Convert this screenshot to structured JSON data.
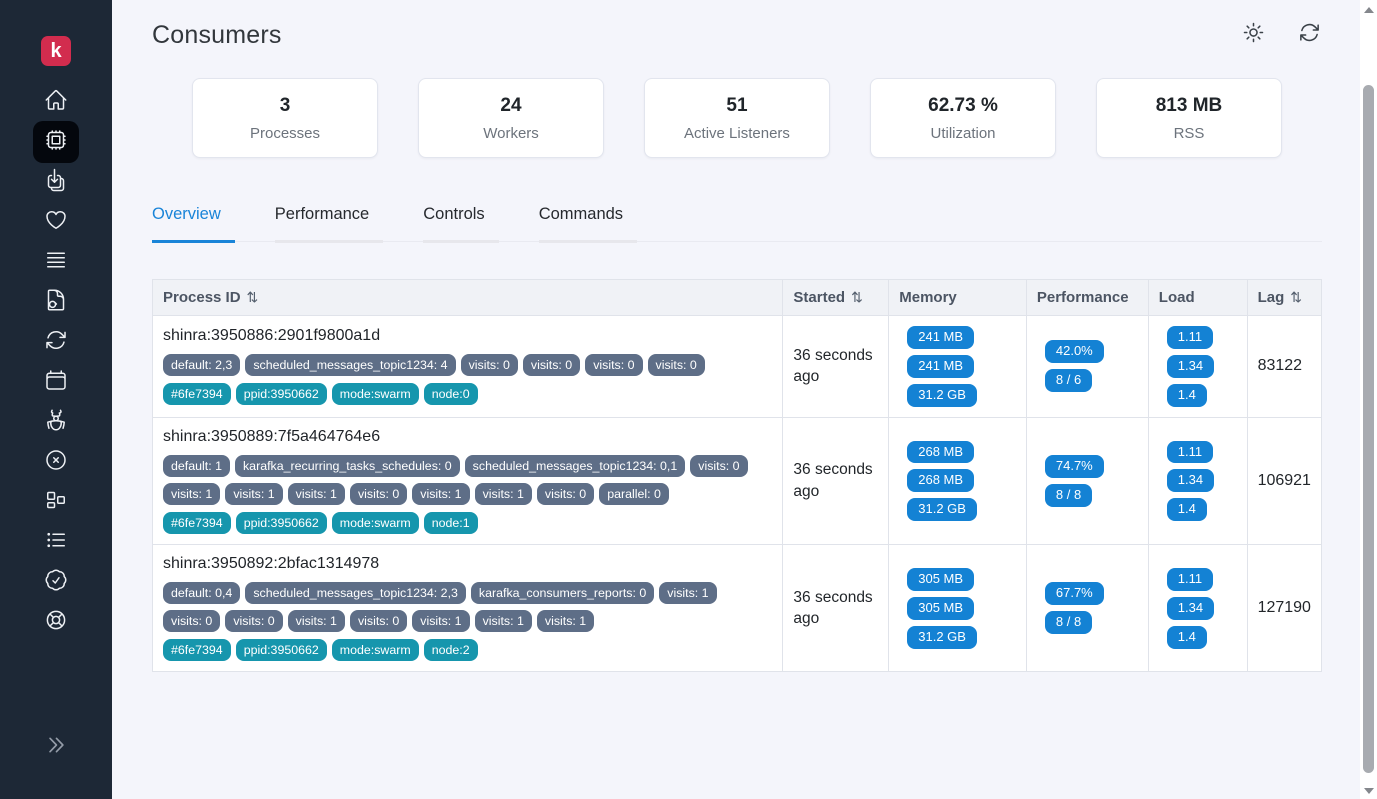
{
  "colors": {
    "accent_blue": "#1984d8",
    "badge_blue": "#1482d4",
    "badge_gray": "#5e6e87",
    "badge_teal": "#1696ad",
    "logo_red": "#d22c4e",
    "sidebar_bg": "#1d2836"
  },
  "sidebar": {
    "logo_letter": "k",
    "icons": [
      "home-icon",
      "consumers-icon",
      "jobs-icon",
      "health-icon",
      "routing-icon",
      "explorer-icon",
      "recurring-tasks-icon",
      "scheduled-messages-icon",
      "errors-icon",
      "dlq-icon",
      "cluster-icon",
      "logs-icon",
      "status-icon",
      "support-icon",
      "collapse-icon"
    ],
    "active_icon": "consumers-icon"
  },
  "header": {
    "title": "Consumers",
    "action_icons": [
      "theme-toggle-icon",
      "refresh-icon"
    ]
  },
  "stats": [
    {
      "value": "3",
      "label": "Processes"
    },
    {
      "value": "24",
      "label": "Workers"
    },
    {
      "value": "51",
      "label": "Active Listeners"
    },
    {
      "value": "62.73 %",
      "label": "Utilization"
    },
    {
      "value": "813 MB",
      "label": "RSS"
    }
  ],
  "tabs": [
    {
      "label": "Overview",
      "active": true
    },
    {
      "label": "Performance",
      "active": false
    },
    {
      "label": "Controls",
      "active": false
    },
    {
      "label": "Commands",
      "active": false
    }
  ],
  "table": {
    "sort_icon": "⇅",
    "columns": [
      {
        "label": "Process ID",
        "sortable": true
      },
      {
        "label": "Started",
        "sortable": true
      },
      {
        "label": "Memory",
        "sortable": false
      },
      {
        "label": "Performance",
        "sortable": false
      },
      {
        "label": "Load",
        "sortable": false
      },
      {
        "label": "Lag",
        "sortable": true
      }
    ],
    "rows": [
      {
        "process_id": "shinra:3950886:2901f9800a1d",
        "topic_badges": [
          "default: 2,3",
          "scheduled_messages_topic1234: 4",
          "visits: 0",
          "visits: 0",
          "visits: 0",
          "visits: 0"
        ],
        "meta_badges": [
          "#6fe7394",
          "ppid:3950662",
          "mode:swarm",
          "node:0"
        ],
        "started": "36 seconds ago",
        "memory": [
          "241 MB",
          "241 MB",
          "31.2 GB"
        ],
        "performance": [
          "42.0%",
          "8 / 6"
        ],
        "load": [
          "1.11",
          "1.34",
          "1.4"
        ],
        "lag": "83122"
      },
      {
        "process_id": "shinra:3950889:7f5a464764e6",
        "topic_badges": [
          "default: 1",
          "karafka_recurring_tasks_schedules: 0",
          "scheduled_messages_topic1234: 0,1",
          "visits: 0",
          "visits: 1",
          "visits: 1",
          "visits: 1",
          "visits: 0",
          "visits: 1",
          "visits: 1",
          "visits: 0",
          "parallel: 0"
        ],
        "meta_badges": [
          "#6fe7394",
          "ppid:3950662",
          "mode:swarm",
          "node:1"
        ],
        "started": "36 seconds ago",
        "memory": [
          "268 MB",
          "268 MB",
          "31.2 GB"
        ],
        "performance": [
          "74.7%",
          "8 / 8"
        ],
        "load": [
          "1.11",
          "1.34",
          "1.4"
        ],
        "lag": "106921"
      },
      {
        "process_id": "shinra:3950892:2bfac1314978",
        "topic_badges": [
          "default: 0,4",
          "scheduled_messages_topic1234: 2,3",
          "karafka_consumers_reports: 0",
          "visits: 1",
          "visits: 0",
          "visits: 0",
          "visits: 1",
          "visits: 0",
          "visits: 1",
          "visits: 1",
          "visits: 1"
        ],
        "meta_badges": [
          "#6fe7394",
          "ppid:3950662",
          "mode:swarm",
          "node:2"
        ],
        "started": "36 seconds ago",
        "memory": [
          "305 MB",
          "305 MB",
          "31.2 GB"
        ],
        "performance": [
          "67.7%",
          "8 / 8"
        ],
        "load": [
          "1.11",
          "1.34",
          "1.4"
        ],
        "lag": "127190"
      }
    ]
  }
}
